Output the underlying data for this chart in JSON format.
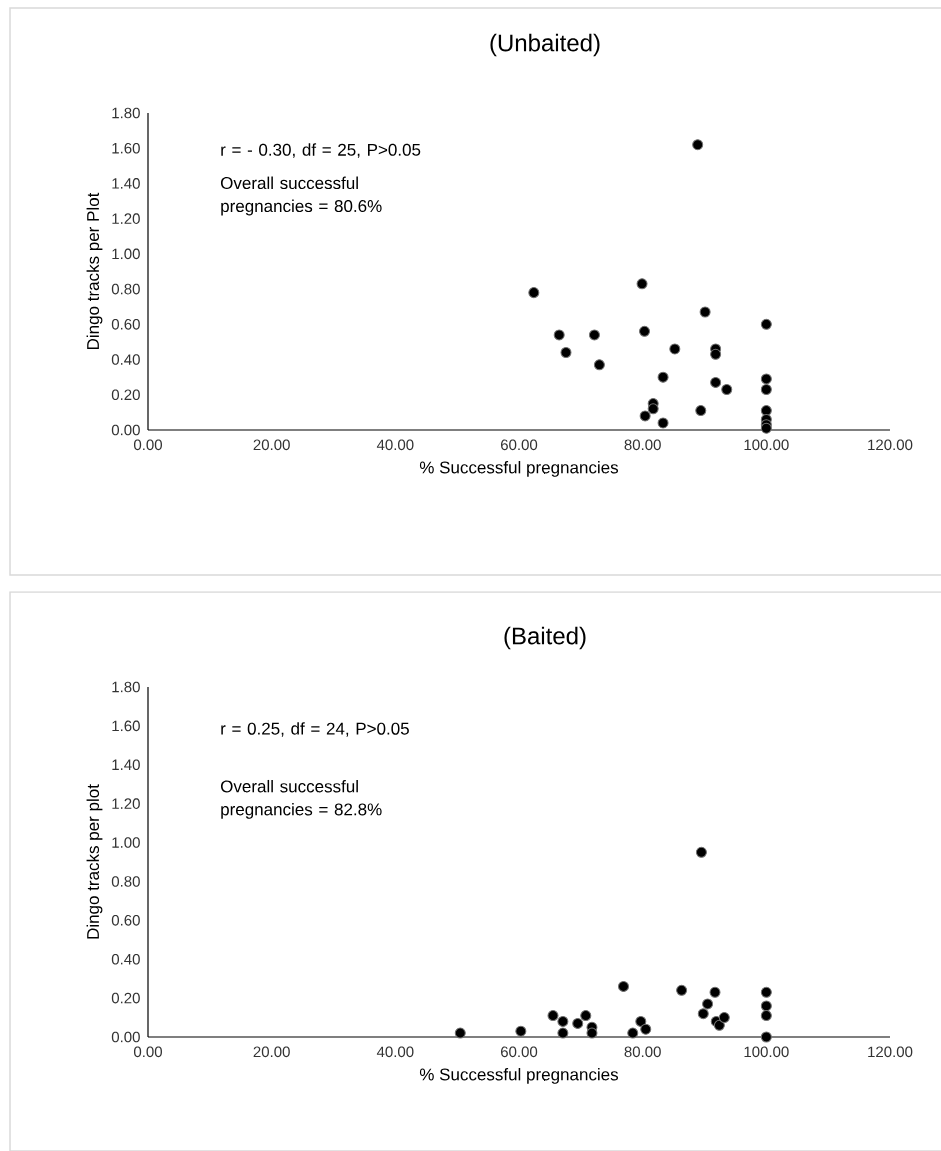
{
  "chart_data": [
    {
      "type": "scatter",
      "title": "(Unbaited)",
      "xlabel": "% Successful pregnancies",
      "ylabel": "Dingo tracks per Plot",
      "annotations": [
        "r = - 0.30, df = 25, P>0.05",
        "Overall successful pregnancies = 80.6%"
      ],
      "x": [
        88.9,
        62.4,
        79.9,
        90.1,
        100,
        66.5,
        72.2,
        80.3,
        67.6,
        73.0,
        85.2,
        91.8,
        91.8,
        83.3,
        91.8,
        93.6,
        100,
        100,
        81.7,
        81.7,
        80.4,
        83.3,
        89.4,
        100,
        100,
        100,
        100
      ],
      "values": [
        1.62,
        0.78,
        0.83,
        0.67,
        0.6,
        0.54,
        0.54,
        0.56,
        0.44,
        0.37,
        0.46,
        0.46,
        0.43,
        0.3,
        0.27,
        0.23,
        0.29,
        0.23,
        0.15,
        0.12,
        0.08,
        0.04,
        0.11,
        0.11,
        0.06,
        0.03,
        0.01
      ],
      "color": "#000000",
      "marker": "circle",
      "grid": false,
      "xlim": [
        0,
        120
      ],
      "ylim": [
        0,
        1.8
      ],
      "xticks": [
        {
          "value": 0,
          "label": "0.00"
        },
        {
          "value": 20,
          "label": "20.00"
        },
        {
          "value": 40,
          "label": "40.00"
        },
        {
          "value": 60,
          "label": "60.00"
        },
        {
          "value": 80,
          "label": "80.00"
        },
        {
          "value": 100,
          "label": "100.00"
        },
        {
          "value": 120,
          "label": "120.00"
        }
      ],
      "yticks": [
        {
          "value": 0,
          "label": "0.00"
        },
        {
          "value": 0.2,
          "label": "0.20"
        },
        {
          "value": 0.4,
          "label": "0.40"
        },
        {
          "value": 0.6,
          "label": "0.60"
        },
        {
          "value": 0.8,
          "label": "0.80"
        },
        {
          "value": 1.0,
          "label": "1.00"
        },
        {
          "value": 1.2,
          "label": "1.20"
        },
        {
          "value": 1.4,
          "label": "1.40"
        },
        {
          "value": 1.6,
          "label": "1.60"
        },
        {
          "value": 1.8,
          "label": "1.80"
        }
      ]
    },
    {
      "type": "scatter",
      "title": "(Baited)",
      "xlabel": "% Successful pregnancies",
      "ylabel": "Dingo tracks per plot",
      "annotations": [
        "r = 0.25, df = 24, P>0.05",
        "Overall successful pregnancies = 82.8%"
      ],
      "x": [
        89.5,
        76.9,
        86.3,
        91.7,
        90.5,
        100,
        100,
        100,
        100,
        50.5,
        60.3,
        65.5,
        67.1,
        67.1,
        69.5,
        70.8,
        71.8,
        71.8,
        78.4,
        79.7,
        80.5,
        89.8,
        91.9,
        92.4,
        93.2
      ],
      "values": [
        0.95,
        0.26,
        0.24,
        0.23,
        0.17,
        0.23,
        0.16,
        0.11,
        0.0,
        0.02,
        0.03,
        0.11,
        0.08,
        0.02,
        0.07,
        0.11,
        0.05,
        0.02,
        0.02,
        0.08,
        0.04,
        0.12,
        0.08,
        0.06,
        0.1
      ],
      "color": "#000000",
      "marker": "circle",
      "grid": false,
      "xlim": [
        0,
        120
      ],
      "ylim": [
        0,
        1.8
      ],
      "xticks": [
        {
          "value": 0,
          "label": "0.00"
        },
        {
          "value": 20,
          "label": "20.00"
        },
        {
          "value": 40,
          "label": "40.00"
        },
        {
          "value": 60,
          "label": "60.00"
        },
        {
          "value": 80,
          "label": "80.00"
        },
        {
          "value": 100,
          "label": "100.00"
        },
        {
          "value": 120,
          "label": "120.00"
        }
      ],
      "yticks": [
        {
          "value": 0,
          "label": "0.00"
        },
        {
          "value": 0.2,
          "label": "0.20"
        },
        {
          "value": 0.4,
          "label": "0.40"
        },
        {
          "value": 0.6,
          "label": "0.60"
        },
        {
          "value": 0.8,
          "label": "0.80"
        },
        {
          "value": 1.0,
          "label": "1.00"
        },
        {
          "value": 1.2,
          "label": "1.20"
        },
        {
          "value": 1.4,
          "label": "1.40"
        },
        {
          "value": 1.6,
          "label": "1.60"
        },
        {
          "value": 1.8,
          "label": "1.80"
        }
      ]
    }
  ]
}
